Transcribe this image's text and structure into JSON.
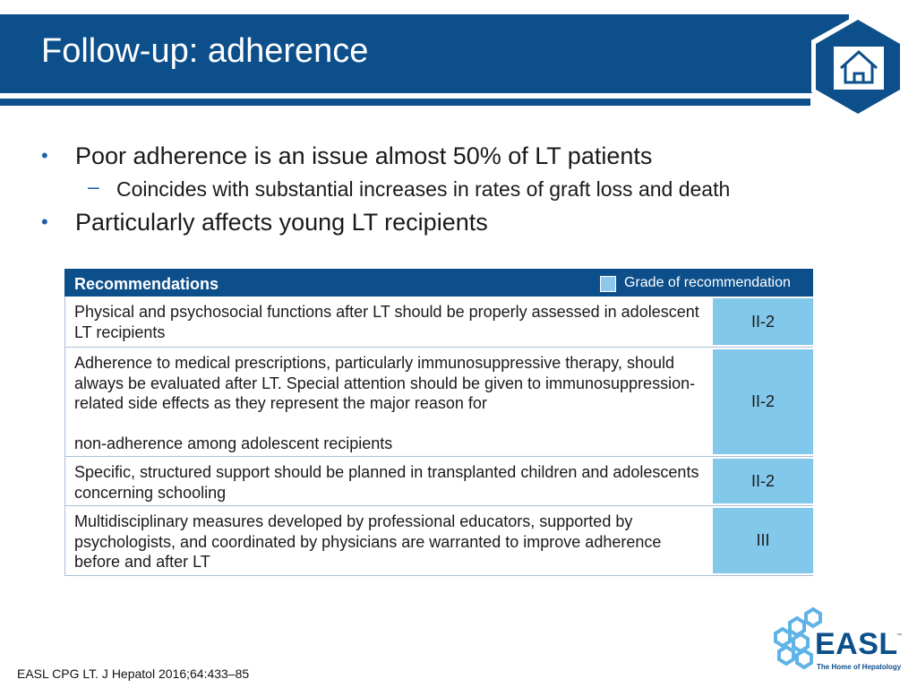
{
  "slide": {
    "title": "Follow-up: adherence"
  },
  "bullets": [
    {
      "text": "Poor adherence is an issue almost 50% of LT patients"
    },
    {
      "sub": "Coincides with substantial increases in rates of graft loss and death"
    },
    {
      "text": "Particularly affects young LT recipients"
    }
  ],
  "bullet_glyph": "•",
  "sub_glyph": "–",
  "table": {
    "header": "Recommendations",
    "legend_label": "Grade of recommendation",
    "rows": [
      {
        "text": "Physical and psychosocial functions after LT should be properly assessed in adolescent LT recipients",
        "grade": "II-2"
      },
      {
        "text": "Adherence to medical prescriptions, particularly immunosuppressive therapy, should always be evaluated after LT. Special attention should be given to immunosuppression-related side effects as they represent the major reason for\n\nnon-adherence among adolescent recipients",
        "grade": "II-2"
      },
      {
        "text": "Specific, structured support should be planned in transplanted children and adolescents concerning schooling",
        "grade": "II-2"
      },
      {
        "text": "Multidisciplinary measures developed by professional educators, supported by psychologists, and coordinated by physicians are warranted to improve adherence before and after LT",
        "grade": "III"
      }
    ]
  },
  "footer": {
    "citation": "EASL CPG LT. J Hepatol 2016;64:433–85"
  },
  "logo": {
    "wordmark": "EASL",
    "tagline": "The Home of Hepatology",
    "tm": "™"
  },
  "icons": {
    "home": "home-icon"
  },
  "colors": {
    "brand_blue": "#0d4f8b",
    "grade_cell": "#82c8ea",
    "legend_swatch": "#8ec8ea",
    "bullet": "#1f5fa8"
  }
}
